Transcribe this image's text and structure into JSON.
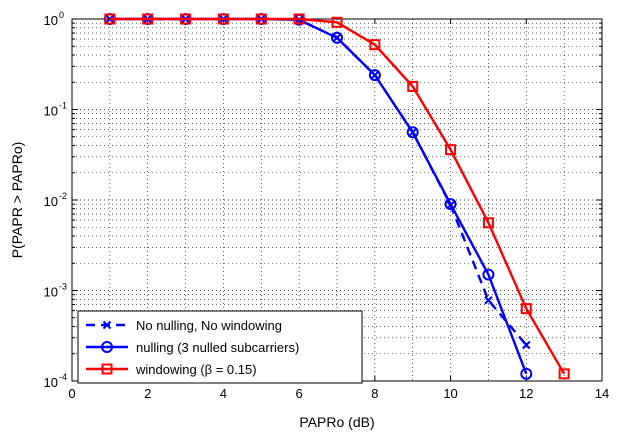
{
  "chart_data": {
    "type": "line",
    "xlabel": "PAPRo (dB)",
    "ylabel": "P(PAPR > PAPRo)",
    "xlim": [
      0,
      14
    ],
    "ylim": [
      0.0001,
      1
    ],
    "yscale": "log",
    "grid": true,
    "legend_position": "bottom-left",
    "x_ticks": [
      "0",
      "2",
      "4",
      "6",
      "8",
      "10",
      "12",
      "14"
    ],
    "y_ticks": [
      {
        "base": "10",
        "exp": "-4"
      },
      {
        "base": "10",
        "exp": "-3"
      },
      {
        "base": "10",
        "exp": "-2"
      },
      {
        "base": "10",
        "exp": "-1"
      },
      {
        "base": "10",
        "exp": "0"
      }
    ],
    "series": [
      {
        "name": "No nulling, No windowing",
        "color": "#0000ff",
        "line_style": "dashed",
        "marker": "x",
        "x": [
          1,
          2,
          3,
          4,
          5,
          6,
          7,
          8,
          9,
          10,
          11,
          12
        ],
        "y": [
          1,
          1,
          1,
          1,
          1,
          0.98,
          0.62,
          0.24,
          0.056,
          0.0088,
          0.00078,
          0.00025
        ]
      },
      {
        "name": "nulling (3 nulled subcarriers)",
        "color": "#0000ff",
        "line_style": "solid",
        "marker": "circle",
        "x": [
          1,
          2,
          3,
          4,
          5,
          6,
          7,
          8,
          9,
          10,
          11,
          12
        ],
        "y": [
          1,
          1,
          1,
          1,
          1,
          0.98,
          0.62,
          0.24,
          0.056,
          0.009,
          0.0015,
          0.00012
        ]
      },
      {
        "name": "windowing (β = 0.15)",
        "color": "#ff0000",
        "line_style": "solid",
        "marker": "square",
        "x": [
          1,
          2,
          3,
          4,
          5,
          6,
          7,
          8,
          9,
          10,
          11,
          12,
          13
        ],
        "y": [
          1,
          1,
          1,
          1,
          1,
          1,
          0.92,
          0.52,
          0.18,
          0.036,
          0.0056,
          0.00063,
          0.00012
        ]
      }
    ]
  }
}
